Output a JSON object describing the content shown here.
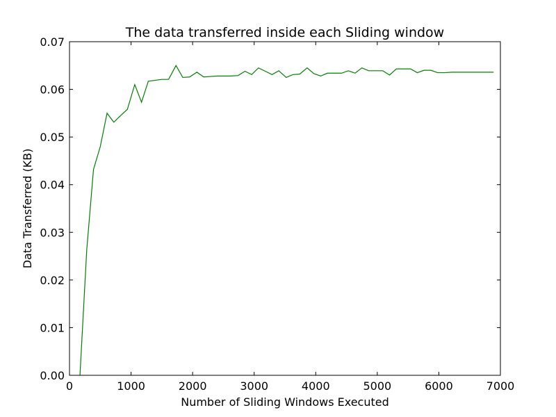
{
  "chart_data": {
    "type": "line",
    "title": "The data transferred inside each Sliding window",
    "xlabel": "Number of Sliding Windows Executed",
    "ylabel": "Data Transferred (KB)",
    "xlim": [
      0,
      7000
    ],
    "ylim": [
      0,
      0.07
    ],
    "x_ticks": [
      0,
      1000,
      2000,
      3000,
      4000,
      5000,
      6000,
      7000
    ],
    "x_tick_labels": [
      "0",
      "1000",
      "2000",
      "3000",
      "4000",
      "5000",
      "6000",
      "7000"
    ],
    "y_ticks": [
      0,
      0.01,
      0.02,
      0.03,
      0.04,
      0.05,
      0.06,
      0.07
    ],
    "y_tick_labels": [
      "0.00",
      "0.01",
      "0.02",
      "0.03",
      "0.04",
      "0.05",
      "0.06",
      "0.07"
    ],
    "grid": false,
    "legend": "none",
    "series": [
      {
        "color": "#008000",
        "x": [
          170,
          280,
          390,
          500,
          610,
          720,
          830,
          940,
          1060,
          1170,
          1280,
          1390,
          1500,
          1610,
          1730,
          1840,
          1950,
          2070,
          2180,
          2290,
          2400,
          2510,
          2620,
          2740,
          2850,
          2960,
          3070,
          3180,
          3290,
          3400,
          3520,
          3630,
          3740,
          3860,
          3970,
          4080,
          4190,
          4300,
          4420,
          4530,
          4640,
          4750,
          4860,
          4970,
          5090,
          5200,
          5310,
          5420,
          5540,
          5650,
          5760,
          5870,
          5980,
          6100,
          6210,
          6320,
          6440,
          6550,
          6660,
          6780,
          6890
        ],
        "y": [
          0.0,
          0.0263,
          0.0432,
          0.048,
          0.055,
          0.0531,
          0.0545,
          0.0558,
          0.061,
          0.0573,
          0.0617,
          0.0619,
          0.0621,
          0.0621,
          0.065,
          0.0625,
          0.0626,
          0.0636,
          0.0626,
          0.0627,
          0.0628,
          0.0628,
          0.0628,
          0.0629,
          0.0638,
          0.0631,
          0.0645,
          0.0638,
          0.0631,
          0.0639,
          0.0625,
          0.0631,
          0.0632,
          0.0645,
          0.0633,
          0.0628,
          0.0634,
          0.0634,
          0.0634,
          0.0639,
          0.0634,
          0.0645,
          0.0639,
          0.0639,
          0.0639,
          0.063,
          0.0643,
          0.0643,
          0.0643,
          0.0635,
          0.064,
          0.064,
          0.0635,
          0.0635,
          0.0636,
          0.0636,
          0.0636,
          0.0636,
          0.0636,
          0.0636,
          0.0636
        ]
      }
    ]
  }
}
